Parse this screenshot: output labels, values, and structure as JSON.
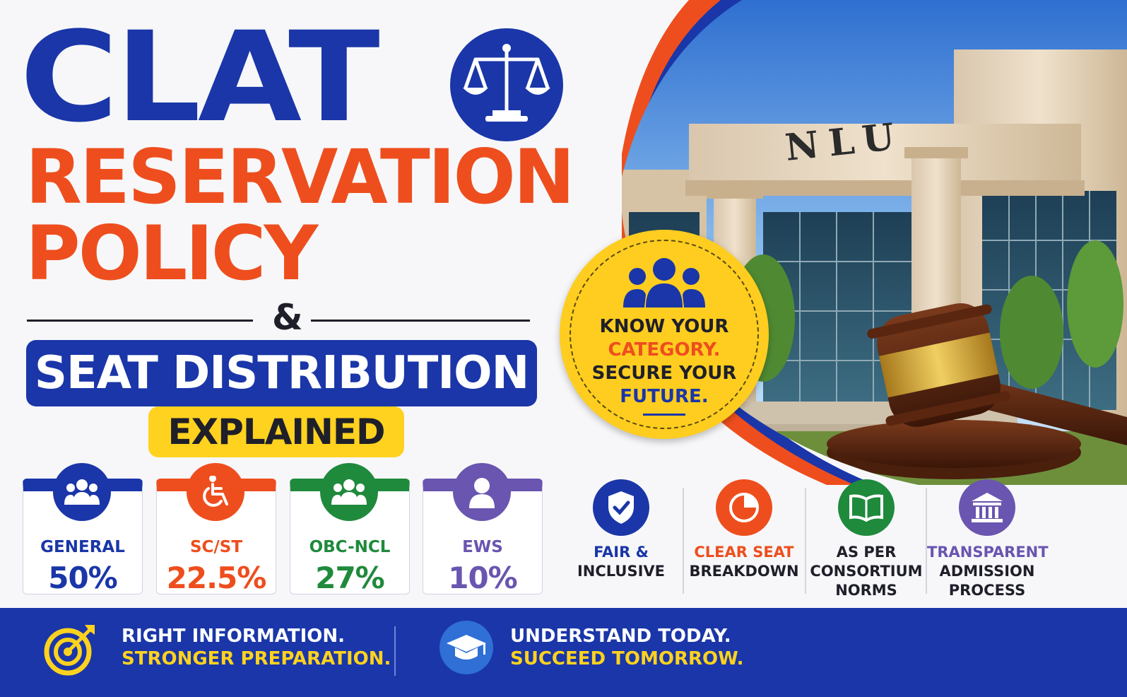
{
  "headline": {
    "line1": "CLAT",
    "line2": "RESERVATION",
    "line3": "POLICY",
    "ampersand": "&",
    "line4": "SEAT DISTRIBUTION",
    "line5": "EXPLAINED"
  },
  "badge": {
    "line1": "KNOW YOUR",
    "line2": "CATEGORY.",
    "line3": "SECURE YOUR",
    "line4": "FUTURE."
  },
  "photo": {
    "building_sign": "NLU"
  },
  "categories": [
    {
      "label": "GENERAL",
      "percent": "50%",
      "color": "#1a36a8",
      "icon": "group-icon"
    },
    {
      "label": "SC/ST",
      "percent": "22.5%",
      "color": "#ee4e1e",
      "icon": "wheelchair-icon"
    },
    {
      "label": "OBC-NCL",
      "percent": "27%",
      "color": "#1f8a3c",
      "icon": "group-icon"
    },
    {
      "label": "EWS",
      "percent": "10%",
      "color": "#6a55b0",
      "icon": "person-icon"
    }
  ],
  "features": [
    {
      "line1": "FAIR &",
      "line2": "INCLUSIVE",
      "line3": "",
      "color": "#1a36a8",
      "icon": "shield-check-icon"
    },
    {
      "line1": "CLEAR SEAT",
      "line2": "BREAKDOWN",
      "line3": "",
      "color": "#ee4e1e",
      "icon": "pie-chart-icon"
    },
    {
      "line1": "AS PER",
      "line2": "CONSORTIUM",
      "line3": "NORMS",
      "color": "#1f8a3c",
      "icon": "book-icon"
    },
    {
      "line1": "TRANSPARENT",
      "line2": "ADMISSION",
      "line3": "PROCESS",
      "color": "#6a55b0",
      "icon": "institution-icon"
    }
  ],
  "footer": {
    "left_line1": "RIGHT INFORMATION.",
    "left_line2": "STRONGER PREPARATION.",
    "right_line1": "UNDERSTAND TODAY.",
    "right_line2": "SUCCEED TOMORROW."
  },
  "colors": {
    "brand_blue": "#1a36a8",
    "brand_orange": "#ee4e1e",
    "brand_yellow": "#ffd21f"
  }
}
